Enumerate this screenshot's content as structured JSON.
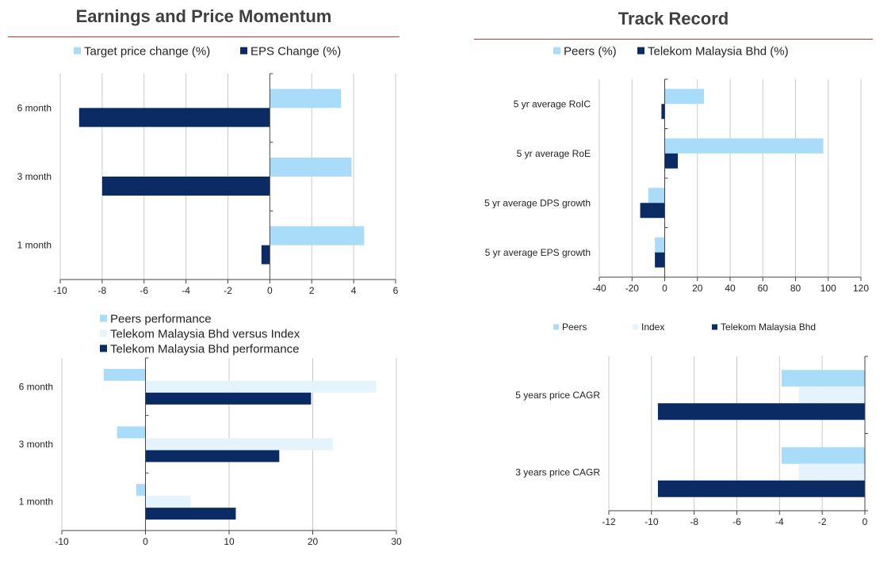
{
  "sections": {
    "left_title": "Earnings and Price Momentum",
    "right_title": "Track Record"
  },
  "colors": {
    "light": "#a9dcf9",
    "dark": "#0a2b63",
    "pale": "#e4f3fc",
    "grid": "#c9c9c9",
    "axis": "#444444",
    "rule": "#c0392b"
  },
  "chart_data": [
    {
      "id": "earnings-momentum",
      "type": "bar",
      "orientation": "horizontal",
      "categories": [
        "6 month",
        "3 month",
        "1 month"
      ],
      "series": [
        {
          "name": "Target price change (%)",
          "color": "#a9dcf9",
          "values": [
            3.4,
            3.9,
            4.5
          ]
        },
        {
          "name": "EPS Change (%)",
          "color": "#0a2b63",
          "values": [
            -9.1,
            -8.0,
            -0.4
          ]
        }
      ],
      "xlim": [
        -10,
        6
      ],
      "xticks": [
        -10,
        -8,
        -6,
        -4,
        -2,
        0,
        2,
        4,
        6
      ],
      "grid": true,
      "legend": "top-center"
    },
    {
      "id": "track-record",
      "type": "bar",
      "orientation": "horizontal",
      "categories": [
        "5 yr average RoIC",
        "5 yr average RoE",
        "5 yr average DPS growth",
        "5 yr average EPS growth"
      ],
      "series": [
        {
          "name": "Peers (%)",
          "color": "#a9dcf9",
          "values": [
            24,
            97,
            -10,
            -6
          ]
        },
        {
          "name": "Telekom Malaysia Bhd (%)",
          "color": "#0a2b63",
          "values": [
            -2,
            8,
            -15,
            -6
          ]
        }
      ],
      "xlim": [
        -40,
        120
      ],
      "xticks": [
        -40,
        -20,
        0,
        20,
        40,
        60,
        80,
        100,
        120
      ],
      "grid": true,
      "legend": "top-center"
    },
    {
      "id": "peers-performance",
      "type": "bar",
      "orientation": "horizontal",
      "categories": [
        "6 month",
        "3 month",
        "1 month"
      ],
      "series": [
        {
          "name": "Peers performance",
          "color": "#a9dcf9",
          "values": [
            -5.0,
            -3.4,
            -1.1
          ]
        },
        {
          "name": "Telekom Malaysia Bhd versus Index",
          "color": "#e4f3fc",
          "values": [
            27.6,
            22.4,
            5.4
          ]
        },
        {
          "name": "Telekom Malaysia Bhd performance",
          "color": "#0a2b63",
          "values": [
            19.8,
            16.0,
            10.8
          ]
        }
      ],
      "xlim": [
        -10,
        30
      ],
      "xticks": [
        -10,
        0,
        10,
        20,
        30
      ],
      "grid": true,
      "legend": "top-left"
    },
    {
      "id": "price-cagr",
      "type": "bar",
      "orientation": "horizontal",
      "categories": [
        "5 years price CAGR",
        "3 years price CAGR"
      ],
      "series": [
        {
          "name": "Peers",
          "color": "#a9dcf9",
          "values": [
            -3.9,
            -3.9
          ]
        },
        {
          "name": "Index",
          "color": "#e4f3fc",
          "values": [
            -3.1,
            -3.1
          ]
        },
        {
          "name": "Telekom Malaysia Bhd",
          "color": "#0a2b63",
          "values": [
            -9.7,
            -9.7
          ]
        }
      ],
      "xlim": [
        -12,
        0
      ],
      "xticks": [
        -12,
        -10,
        -8,
        -6,
        -4,
        -2,
        0
      ],
      "grid": true,
      "legend": "top-center"
    }
  ]
}
